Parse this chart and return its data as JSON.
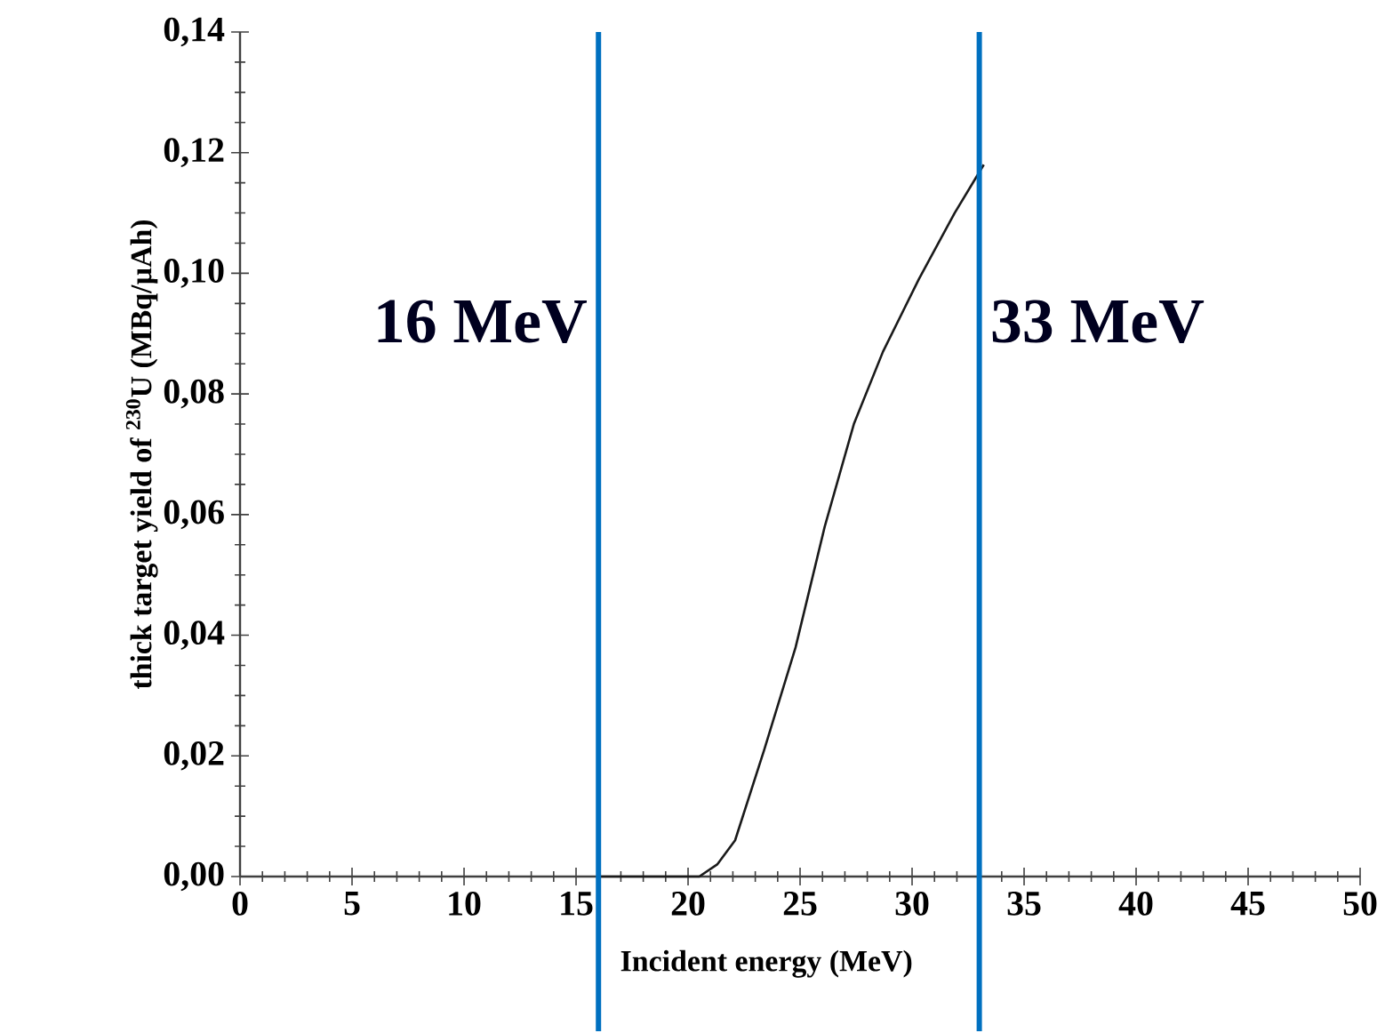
{
  "chart_data": {
    "type": "line",
    "xlabel": "Incident energy (MeV)",
    "ylabel": "thick target yield of $^{230}$U (MBq/µAh)",
    "series": [
      {
        "color": "#1a1a1a",
        "x": [
          16,
          18,
          20,
          20.5,
          21.3,
          22.1,
          23.4,
          24.8,
          26.1,
          27.4,
          28.7,
          30.3,
          31.9,
          33.2
        ],
        "values": [
          0,
          0,
          0,
          0,
          0.002,
          0.006,
          0.021,
          0.038,
          0.058,
          0.075,
          0.087,
          0.099,
          0.11,
          0.118
        ]
      }
    ],
    "xlim": [
      0,
      50
    ],
    "xticks": [
      0,
      5,
      10,
      15,
      20,
      25,
      30,
      35,
      40,
      45,
      50
    ],
    "ylim": [
      0,
      0.14
    ],
    "yticks": [
      {
        "value": 0,
        "label": "0,00"
      },
      {
        "value": 0.02,
        "label": "0,02"
      },
      {
        "value": 0.04,
        "label": "0,04"
      },
      {
        "value": 0.06,
        "label": "0,06"
      },
      {
        "value": 0.08,
        "label": "0,08"
      },
      {
        "value": 0.1,
        "label": "0,10"
      },
      {
        "value": 0.12,
        "label": "0,12"
      },
      {
        "value": 0.14,
        "label": "0,14"
      }
    ],
    "ref_lines": [
      {
        "axis": "x",
        "value": 16,
        "label": "16 MeV",
        "color": "#0070c0"
      },
      {
        "axis": "x",
        "value": 33,
        "label": "33 MeV",
        "color": "#0070c0"
      }
    ],
    "grid": false,
    "marker": "none",
    "line_style": "solid"
  }
}
